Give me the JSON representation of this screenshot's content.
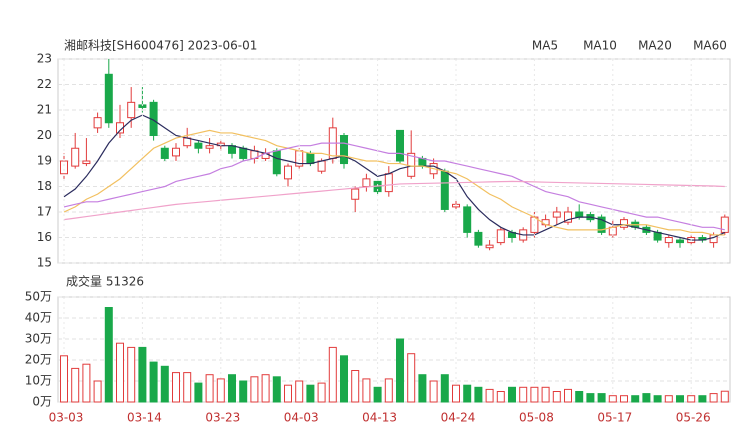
{
  "chart_data": [
    {
      "type": "candlestick",
      "title": "湘邮科技[SH600476] 2023-06-01",
      "up_color": "#e23b3b",
      "down_color": "#19a84a",
      "grid": true,
      "ylim": [
        15,
        23
      ],
      "yticks": [
        15,
        16,
        17,
        18,
        19,
        20,
        21,
        22,
        23
      ],
      "open": [
        18.5,
        18.8,
        18.9,
        20.3,
        22.4,
        20.1,
        20.7,
        21.2,
        21.3,
        19.5,
        19.2,
        19.6,
        19.7,
        19.5,
        19.6,
        19.6,
        19.5,
        19.1,
        19.1,
        19.4,
        18.3,
        18.8,
        19.3,
        18.6,
        19.1,
        20.0,
        17.5,
        18.0,
        18.2,
        17.8,
        20.2,
        18.4,
        19.1,
        18.5,
        18.6,
        17.2,
        17.2,
        16.2,
        15.6,
        15.8,
        16.2,
        15.9,
        16.2,
        16.5,
        16.8,
        16.6,
        17.0,
        16.9,
        16.8,
        16.1,
        16.4,
        16.6,
        16.4,
        16.2,
        15.8,
        15.9,
        15.8,
        16.0,
        15.8,
        16.2
      ],
      "close": [
        19.0,
        19.5,
        19.0,
        20.7,
        20.5,
        20.5,
        21.3,
        21.1,
        20.0,
        19.1,
        19.5,
        19.9,
        19.5,
        19.6,
        19.7,
        19.3,
        19.1,
        19.4,
        19.3,
        18.5,
        18.8,
        19.4,
        18.9,
        19.0,
        20.3,
        18.9,
        17.9,
        18.3,
        17.8,
        18.5,
        19.0,
        19.3,
        18.8,
        18.9,
        17.1,
        17.3,
        16.2,
        15.7,
        15.7,
        16.3,
        16.0,
        16.3,
        16.8,
        16.7,
        17.0,
        17.0,
        16.8,
        16.7,
        16.2,
        16.4,
        16.7,
        16.4,
        16.2,
        15.9,
        16.0,
        15.8,
        16.0,
        15.9,
        16.1,
        16.8
      ],
      "high": [
        19.3,
        20.1,
        19.9,
        20.9,
        23.0,
        21.2,
        21.9,
        21.9,
        21.4,
        19.6,
        19.7,
        20.3,
        19.8,
        19.9,
        19.8,
        19.7,
        19.6,
        19.6,
        19.5,
        19.5,
        18.9,
        19.5,
        19.4,
        19.1,
        20.7,
        20.1,
        18.0,
        18.5,
        18.3,
        18.8,
        20.2,
        20.2,
        19.2,
        19.1,
        18.7,
        17.5,
        17.3,
        16.3,
        15.9,
        16.4,
        16.3,
        16.4,
        17.0,
        16.9,
        17.2,
        17.2,
        17.3,
        17.0,
        16.9,
        16.7,
        16.8,
        16.7,
        16.5,
        16.3,
        16.1,
        16.0,
        16.1,
        16.1,
        16.2,
        16.9
      ],
      "low": [
        18.3,
        18.7,
        18.8,
        20.1,
        20.3,
        19.9,
        20.3,
        20.9,
        19.8,
        19.0,
        19.0,
        19.5,
        19.3,
        19.3,
        19.4,
        19.1,
        19.0,
        18.9,
        19.0,
        18.4,
        18.0,
        18.7,
        18.8,
        18.5,
        18.9,
        18.7,
        17.0,
        17.8,
        17.7,
        17.6,
        18.9,
        18.3,
        18.7,
        18.3,
        17.0,
        17.1,
        16.0,
        15.6,
        15.5,
        15.7,
        15.8,
        15.8,
        16.0,
        16.4,
        16.5,
        16.5,
        16.7,
        16.6,
        16.1,
        16.0,
        16.3,
        16.3,
        16.1,
        15.8,
        15.6,
        15.6,
        15.7,
        15.8,
        15.6,
        16.1
      ],
      "series": [
        {
          "name": "MA5",
          "color": "#2b2c5e",
          "values": [
            17.6,
            17.9,
            18.4,
            19.0,
            19.7,
            20.2,
            20.6,
            20.8,
            20.6,
            20.3,
            20.0,
            19.9,
            19.8,
            19.7,
            19.6,
            19.6,
            19.5,
            19.4,
            19.3,
            19.1,
            19.0,
            18.9,
            18.9,
            19.0,
            19.1,
            19.2,
            19.0,
            18.7,
            18.4,
            18.5,
            18.7,
            18.8,
            18.8,
            18.8,
            18.6,
            18.3,
            17.6,
            17.1,
            16.7,
            16.4,
            16.2,
            16.1,
            16.1,
            16.3,
            16.5,
            16.7,
            16.8,
            16.8,
            16.7,
            16.5,
            16.5,
            16.4,
            16.3,
            16.2,
            16.1,
            16.0,
            15.9,
            15.9,
            16.0,
            16.2
          ]
        },
        {
          "name": "MA10",
          "color": "#f2c060",
          "values": [
            17.0,
            17.2,
            17.5,
            17.7,
            18.0,
            18.3,
            18.7,
            19.1,
            19.5,
            19.7,
            19.9,
            20.0,
            20.1,
            20.2,
            20.1,
            20.1,
            20.0,
            19.9,
            19.8,
            19.6,
            19.5,
            19.4,
            19.3,
            19.3,
            19.2,
            19.2,
            19.1,
            19.0,
            19.0,
            18.9,
            18.9,
            18.8,
            18.8,
            18.7,
            18.6,
            18.5,
            18.3,
            18.0,
            17.7,
            17.5,
            17.2,
            17.0,
            16.8,
            16.5,
            16.4,
            16.3,
            16.3,
            16.3,
            16.3,
            16.4,
            16.5,
            16.5,
            16.5,
            16.4,
            16.3,
            16.3,
            16.2,
            16.2,
            16.1,
            16.1
          ]
        },
        {
          "name": "MA20",
          "color": "#c57fe0",
          "values": [
            17.2,
            17.3,
            17.4,
            17.4,
            17.5,
            17.6,
            17.7,
            17.8,
            17.9,
            18.0,
            18.2,
            18.3,
            18.4,
            18.5,
            18.7,
            18.8,
            19.0,
            19.1,
            19.3,
            19.4,
            19.5,
            19.6,
            19.6,
            19.7,
            19.7,
            19.7,
            19.6,
            19.5,
            19.4,
            19.3,
            19.3,
            19.2,
            19.1,
            19.0,
            19.0,
            18.9,
            18.8,
            18.7,
            18.6,
            18.5,
            18.4,
            18.2,
            18.0,
            17.8,
            17.7,
            17.6,
            17.4,
            17.3,
            17.2,
            17.1,
            17.0,
            16.9,
            16.8,
            16.8,
            16.7,
            16.6,
            16.5,
            16.4,
            16.4,
            16.3
          ]
        },
        {
          "name": "MA60",
          "color": "#f0a2ca",
          "values": [
            16.7,
            16.76,
            16.82,
            16.88,
            16.94,
            17.0,
            17.06,
            17.12,
            17.18,
            17.24,
            17.3,
            17.34,
            17.38,
            17.42,
            17.46,
            17.5,
            17.54,
            17.58,
            17.62,
            17.66,
            17.7,
            17.74,
            17.78,
            17.82,
            17.86,
            17.9,
            17.94,
            17.98,
            18.02,
            18.06,
            18.1,
            18.11,
            18.12,
            18.13,
            18.14,
            18.15,
            18.16,
            18.17,
            18.18,
            18.19,
            18.2,
            18.19,
            18.18,
            18.17,
            18.16,
            18.15,
            18.14,
            18.13,
            18.12,
            18.11,
            18.1,
            18.09,
            18.08,
            18.07,
            18.06,
            18.05,
            18.04,
            18.03,
            18.02,
            18.0
          ]
        }
      ]
    },
    {
      "type": "bar",
      "title": "成交量 51326",
      "ylim": [
        0,
        50
      ],
      "yticks": [
        {
          "value": 0,
          "label": "0万"
        },
        {
          "value": 10,
          "label": "10万"
        },
        {
          "value": 20,
          "label": "20万"
        },
        {
          "value": 30,
          "label": "30万"
        },
        {
          "value": 40,
          "label": "40万"
        },
        {
          "value": 50,
          "label": "50万"
        }
      ],
      "categories": [
        "03-03",
        null,
        null,
        null,
        null,
        null,
        null,
        "03-14",
        null,
        null,
        null,
        null,
        null,
        null,
        "03-23",
        null,
        null,
        null,
        null,
        null,
        null,
        "04-03",
        null,
        null,
        null,
        null,
        null,
        null,
        "04-13",
        null,
        null,
        null,
        null,
        null,
        null,
        "04-24",
        null,
        null,
        null,
        null,
        null,
        null,
        "05-08",
        null,
        null,
        null,
        null,
        null,
        null,
        "05-17",
        null,
        null,
        null,
        null,
        null,
        null,
        "05-26",
        null,
        null,
        null
      ],
      "values": [
        22,
        16,
        18,
        10,
        45,
        28,
        26,
        26,
        19,
        17,
        14,
        14,
        9,
        13,
        11,
        13,
        10,
        12,
        13,
        12,
        8,
        10,
        8,
        9,
        26,
        22,
        15,
        11,
        7,
        11,
        30,
        23,
        13,
        10,
        13,
        8,
        8,
        7,
        6,
        5,
        7,
        7,
        7,
        7,
        5,
        6,
        5,
        4,
        4,
        3,
        3,
        3,
        4,
        3,
        3,
        3,
        3,
        3,
        4,
        5.1326
      ]
    }
  ]
}
